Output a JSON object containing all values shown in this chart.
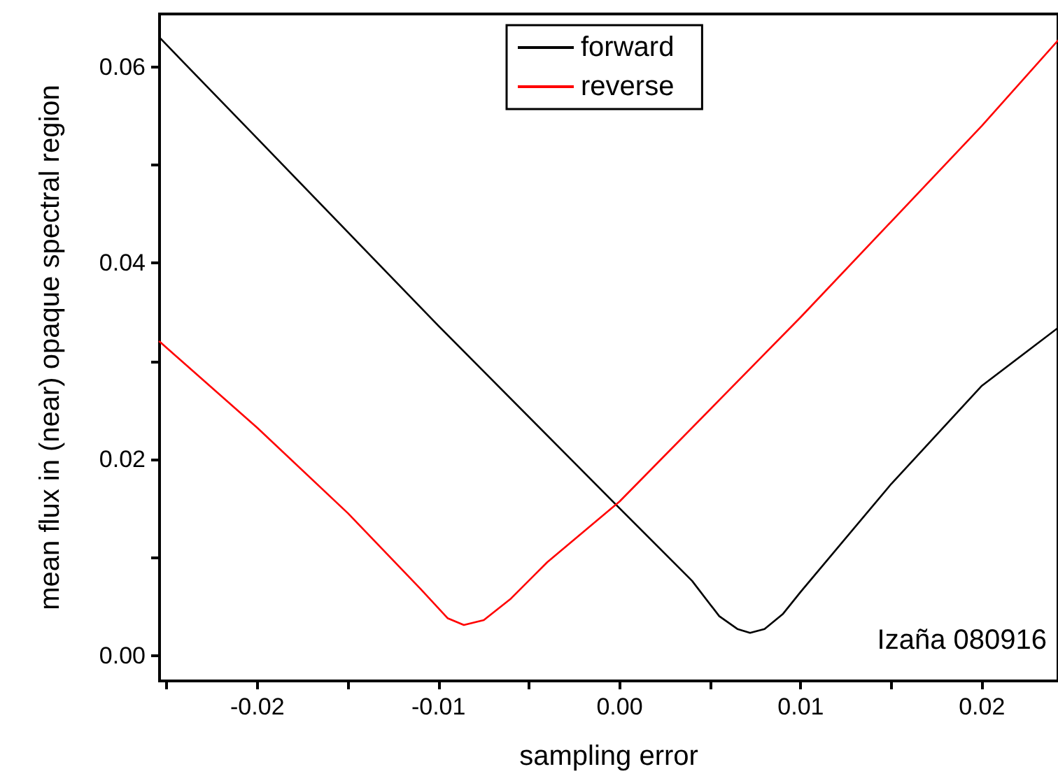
{
  "chart_data": {
    "type": "line",
    "xlabel": "sampling error",
    "ylabel": "mean flux in (near) opaque spectral region",
    "annotations": [
      "Izaña 080916"
    ],
    "xlim": [
      -0.0254,
      0.0242
    ],
    "xticks": [
      {
        "value": -0.025,
        "label": null
      },
      {
        "value": -0.02,
        "label": "-0.02"
      },
      {
        "value": -0.015,
        "label": null
      },
      {
        "value": -0.01,
        "label": "-0.01"
      },
      {
        "value": -0.005,
        "label": null
      },
      {
        "value": 0,
        "label": "0.00"
      },
      {
        "value": 0.005,
        "label": null
      },
      {
        "value": 0.01,
        "label": "0.01"
      },
      {
        "value": 0.015,
        "label": null
      },
      {
        "value": 0.02,
        "label": "0.02"
      }
    ],
    "ylim": [
      -0.0026,
      0.0654
    ],
    "yticks": [
      {
        "value": 0,
        "label": "0.00"
      },
      {
        "value": 0.01,
        "label": null
      },
      {
        "value": 0.02,
        "label": "0.02"
      },
      {
        "value": 0.03,
        "label": null
      },
      {
        "value": 0.04,
        "label": "0.04"
      },
      {
        "value": 0.05,
        "label": null
      },
      {
        "value": 0.06,
        "label": "0.06"
      }
    ],
    "grid": false,
    "legend": "top",
    "marker": "none",
    "line_style": "solid",
    "series": [
      {
        "name": "forward",
        "color": "#000000",
        "x": [
          -0.0254,
          -0.02,
          -0.01,
          0,
          0.004,
          0.0055,
          0.0065,
          0.0072,
          0.008,
          0.009,
          0.01,
          0.015,
          0.02,
          0.0242
        ],
        "values": [
          0.063,
          0.0527,
          0.0336,
          0.015,
          0.0076,
          0.004,
          0.0027,
          0.0023,
          0.0027,
          0.0042,
          0.0065,
          0.0175,
          0.0275,
          0.0334
        ]
      },
      {
        "name": "reverse",
        "color": "#ff0000",
        "x": [
          -0.0254,
          -0.02,
          -0.015,
          -0.011,
          -0.0095,
          -0.0086,
          -0.0075,
          -0.006,
          -0.004,
          0,
          0.01,
          0.02,
          0.0242
        ],
        "values": [
          0.032,
          0.0232,
          0.0145,
          0.0068,
          0.0038,
          0.0031,
          0.0036,
          0.0058,
          0.0095,
          0.0157,
          0.0345,
          0.054,
          0.0627
        ]
      }
    ]
  }
}
